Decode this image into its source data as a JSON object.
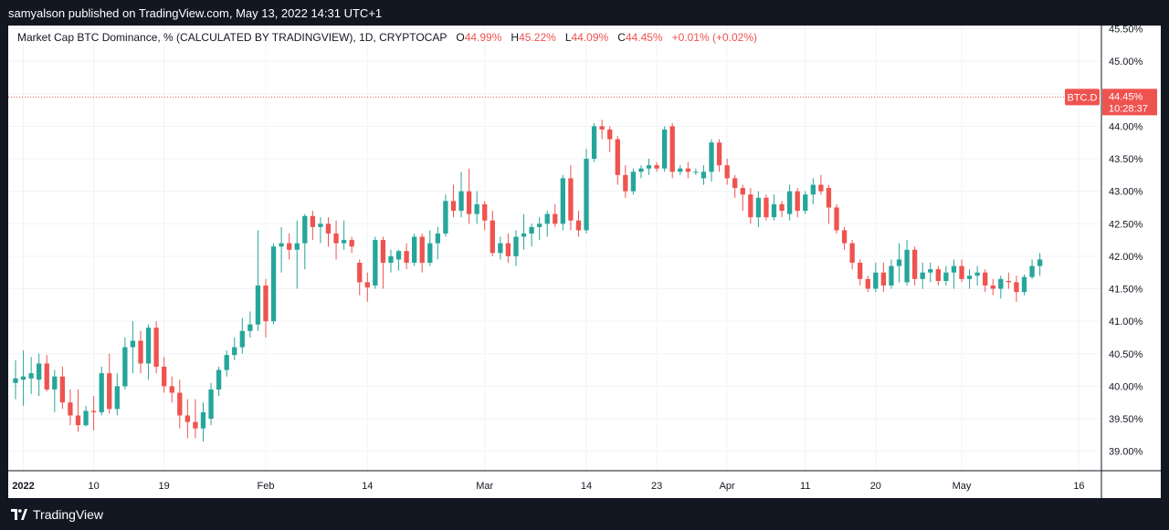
{
  "header": {
    "published": "samyalson published on TradingView.com, May 13, 2022 14:31 UTC+1"
  },
  "legend": {
    "title": "Market Cap BTC Dominance, % (CALCULATED BY TRADINGVIEW), 1D, CRYPTOCAP",
    "o_label": "O",
    "o_value": "44.99%",
    "h_label": "H",
    "h_value": "45.22%",
    "l_label": "L",
    "l_value": "44.09%",
    "c_label": "C",
    "c_value": "44.45%",
    "change": "+0.01% (+0.02%)"
  },
  "price_tag": {
    "symbol": "BTC.D",
    "price": "44.45%",
    "countdown": "10:28:37"
  },
  "footer": {
    "brand": "TradingView"
  },
  "colors": {
    "up": "#26a69a",
    "down": "#ef5350",
    "grid": "#f0f3fa",
    "axis_text": "#131722",
    "background": "#ffffff",
    "frame": "#131722"
  },
  "chart_data": {
    "type": "candlestick",
    "title": "Market Cap BTC Dominance, % (CALCULATED BY TRADINGVIEW), 1D, CRYPTOCAP",
    "xlabel": "",
    "ylabel": "",
    "y_unit": "%",
    "ylim": [
      38.7,
      45.55
    ],
    "y_ticks": [
      39.0,
      39.5,
      40.0,
      40.5,
      41.0,
      41.5,
      42.0,
      42.5,
      43.0,
      43.5,
      44.0,
      44.5,
      45.0,
      45.5
    ],
    "y_tick_labels": [
      "39.00%",
      "39.50%",
      "40.00%",
      "40.50%",
      "41.00%",
      "41.50%",
      "42.00%",
      "42.50%",
      "43.00%",
      "43.50%",
      "44.00%",
      "44.50%",
      "45.00%",
      "45.50%"
    ],
    "x_ticks": [
      {
        "label": "2022",
        "date": "2022-01-01"
      },
      {
        "label": "10",
        "date": "2022-01-10"
      },
      {
        "label": "19",
        "date": "2022-01-19"
      },
      {
        "label": "Feb",
        "date": "2022-02-01"
      },
      {
        "label": "14",
        "date": "2022-02-14"
      },
      {
        "label": "Mar",
        "date": "2022-03-01"
      },
      {
        "label": "14",
        "date": "2022-03-14"
      },
      {
        "label": "23",
        "date": "2022-03-23"
      },
      {
        "label": "Apr",
        "date": "2022-04-01"
      },
      {
        "label": "11",
        "date": "2022-04-11"
      },
      {
        "label": "20",
        "date": "2022-04-20"
      },
      {
        "label": "May",
        "date": "2022-05-01"
      },
      {
        "label": "16",
        "date": "2022-05-16"
      }
    ],
    "x_range": [
      "2021-12-31",
      "2022-05-17"
    ],
    "last_price": 44.45,
    "grid": true,
    "legend_placement": "top-left",
    "candles": [
      {
        "date": "2021-12-31",
        "o": 40.05,
        "h": 40.4,
        "l": 39.8,
        "c": 40.12
      },
      {
        "date": "2022-01-01",
        "o": 40.1,
        "h": 40.55,
        "l": 39.7,
        "c": 40.15
      },
      {
        "date": "2022-01-02",
        "o": 40.12,
        "h": 40.45,
        "l": 39.88,
        "c": 40.2
      },
      {
        "date": "2022-01-03",
        "o": 40.1,
        "h": 40.5,
        "l": 39.85,
        "c": 40.35
      },
      {
        "date": "2022-01-04",
        "o": 40.35,
        "h": 40.48,
        "l": 39.92,
        "c": 39.95
      },
      {
        "date": "2022-01-05",
        "o": 39.95,
        "h": 40.25,
        "l": 39.6,
        "c": 40.15
      },
      {
        "date": "2022-01-06",
        "o": 40.15,
        "h": 40.3,
        "l": 39.65,
        "c": 39.75
      },
      {
        "date": "2022-01-07",
        "o": 39.75,
        "h": 39.95,
        "l": 39.4,
        "c": 39.55
      },
      {
        "date": "2022-01-08",
        "o": 39.55,
        "h": 39.95,
        "l": 39.3,
        "c": 39.4
      },
      {
        "date": "2022-01-09",
        "o": 39.4,
        "h": 39.7,
        "l": 39.38,
        "c": 39.62
      },
      {
        "date": "2022-01-10",
        "o": 39.62,
        "h": 39.85,
        "l": 39.32,
        "c": 39.6
      },
      {
        "date": "2022-01-11",
        "o": 39.6,
        "h": 40.3,
        "l": 39.55,
        "c": 40.2
      },
      {
        "date": "2022-01-12",
        "o": 40.2,
        "h": 40.5,
        "l": 39.58,
        "c": 39.65
      },
      {
        "date": "2022-01-13",
        "o": 39.65,
        "h": 40.2,
        "l": 39.55,
        "c": 40.0
      },
      {
        "date": "2022-01-14",
        "o": 40.0,
        "h": 40.75,
        "l": 39.95,
        "c": 40.6
      },
      {
        "date": "2022-01-15",
        "o": 40.6,
        "h": 41.0,
        "l": 40.2,
        "c": 40.7
      },
      {
        "date": "2022-01-16",
        "o": 40.7,
        "h": 40.85,
        "l": 40.2,
        "c": 40.35
      },
      {
        "date": "2022-01-17",
        "o": 40.35,
        "h": 40.95,
        "l": 40.1,
        "c": 40.9
      },
      {
        "date": "2022-01-18",
        "o": 40.9,
        "h": 41.0,
        "l": 40.2,
        "c": 40.3
      },
      {
        "date": "2022-01-19",
        "o": 40.3,
        "h": 40.45,
        "l": 39.9,
        "c": 40.0
      },
      {
        "date": "2022-01-20",
        "o": 40.0,
        "h": 40.15,
        "l": 39.75,
        "c": 39.9
      },
      {
        "date": "2022-01-21",
        "o": 39.9,
        "h": 40.1,
        "l": 39.35,
        "c": 39.55
      },
      {
        "date": "2022-01-22",
        "o": 39.55,
        "h": 39.8,
        "l": 39.2,
        "c": 39.45
      },
      {
        "date": "2022-01-23",
        "o": 39.45,
        "h": 39.8,
        "l": 39.2,
        "c": 39.35
      },
      {
        "date": "2022-01-24",
        "o": 39.35,
        "h": 39.75,
        "l": 39.15,
        "c": 39.6
      },
      {
        "date": "2022-01-25",
        "o": 39.5,
        "h": 40.05,
        "l": 39.4,
        "c": 39.95
      },
      {
        "date": "2022-01-26",
        "o": 39.95,
        "h": 40.3,
        "l": 39.85,
        "c": 40.25
      },
      {
        "date": "2022-01-27",
        "o": 40.25,
        "h": 40.55,
        "l": 40.15,
        "c": 40.48
      },
      {
        "date": "2022-01-28",
        "o": 40.48,
        "h": 40.75,
        "l": 40.4,
        "c": 40.6
      },
      {
        "date": "2022-01-29",
        "o": 40.6,
        "h": 41.05,
        "l": 40.5,
        "c": 40.85
      },
      {
        "date": "2022-01-30",
        "o": 40.85,
        "h": 41.15,
        "l": 40.75,
        "c": 40.95
      },
      {
        "date": "2022-01-31",
        "o": 40.95,
        "h": 42.4,
        "l": 40.85,
        "c": 41.55
      },
      {
        "date": "2022-02-01",
        "o": 41.55,
        "h": 41.65,
        "l": 40.75,
        "c": 41.0
      },
      {
        "date": "2022-02-02",
        "o": 41.0,
        "h": 42.2,
        "l": 40.95,
        "c": 42.15
      },
      {
        "date": "2022-02-03",
        "o": 42.15,
        "h": 42.45,
        "l": 41.75,
        "c": 42.2
      },
      {
        "date": "2022-02-04",
        "o": 42.2,
        "h": 42.35,
        "l": 41.95,
        "c": 42.1
      },
      {
        "date": "2022-02-05",
        "o": 42.1,
        "h": 42.55,
        "l": 41.5,
        "c": 42.2
      },
      {
        "date": "2022-02-06",
        "o": 42.2,
        "h": 42.65,
        "l": 41.8,
        "c": 42.62
      },
      {
        "date": "2022-02-07",
        "o": 42.62,
        "h": 42.7,
        "l": 42.25,
        "c": 42.45
      },
      {
        "date": "2022-02-08",
        "o": 42.45,
        "h": 42.6,
        "l": 42.2,
        "c": 42.5
      },
      {
        "date": "2022-02-09",
        "o": 42.5,
        "h": 42.6,
        "l": 42.15,
        "c": 42.35
      },
      {
        "date": "2022-02-10",
        "o": 42.35,
        "h": 42.55,
        "l": 41.95,
        "c": 42.2
      },
      {
        "date": "2022-02-11",
        "o": 42.2,
        "h": 42.55,
        "l": 42.1,
        "c": 42.25
      },
      {
        "date": "2022-02-12",
        "o": 42.25,
        "h": 42.3,
        "l": 42.05,
        "c": 42.15
      },
      {
        "date": "2022-02-13",
        "o": 41.9,
        "h": 41.95,
        "l": 41.4,
        "c": 41.6
      },
      {
        "date": "2022-02-14",
        "o": 41.6,
        "h": 41.75,
        "l": 41.3,
        "c": 41.52
      },
      {
        "date": "2022-02-15",
        "o": 41.55,
        "h": 42.3,
        "l": 41.5,
        "c": 42.25
      },
      {
        "date": "2022-02-16",
        "o": 42.25,
        "h": 42.3,
        "l": 41.5,
        "c": 41.9
      },
      {
        "date": "2022-02-17",
        "o": 41.9,
        "h": 42.1,
        "l": 41.75,
        "c": 42.0
      },
      {
        "date": "2022-02-18",
        "o": 41.95,
        "h": 42.1,
        "l": 41.78,
        "c": 42.08
      },
      {
        "date": "2022-02-19",
        "o": 42.08,
        "h": 42.2,
        "l": 41.8,
        "c": 41.9
      },
      {
        "date": "2022-02-20",
        "o": 41.9,
        "h": 42.35,
        "l": 41.85,
        "c": 42.3
      },
      {
        "date": "2022-02-21",
        "o": 42.3,
        "h": 42.35,
        "l": 41.75,
        "c": 41.9
      },
      {
        "date": "2022-02-22",
        "o": 41.9,
        "h": 42.4,
        "l": 41.85,
        "c": 42.2
      },
      {
        "date": "2022-02-23",
        "o": 42.2,
        "h": 42.45,
        "l": 41.95,
        "c": 42.35
      },
      {
        "date": "2022-02-24",
        "o": 42.35,
        "h": 42.95,
        "l": 42.3,
        "c": 42.85
      },
      {
        "date": "2022-02-25",
        "o": 42.85,
        "h": 43.1,
        "l": 42.6,
        "c": 42.7
      },
      {
        "date": "2022-02-26",
        "o": 42.7,
        "h": 43.3,
        "l": 42.6,
        "c": 43.0
      },
      {
        "date": "2022-02-27",
        "o": 43.0,
        "h": 43.35,
        "l": 42.5,
        "c": 42.65
      },
      {
        "date": "2022-02-28",
        "o": 42.65,
        "h": 43.0,
        "l": 42.5,
        "c": 42.8
      },
      {
        "date": "2022-03-01",
        "o": 42.8,
        "h": 42.85,
        "l": 42.4,
        "c": 42.55
      },
      {
        "date": "2022-03-02",
        "o": 42.55,
        "h": 42.7,
        "l": 42.0,
        "c": 42.05
      },
      {
        "date": "2022-03-03",
        "o": 42.05,
        "h": 42.3,
        "l": 41.95,
        "c": 42.2
      },
      {
        "date": "2022-03-04",
        "o": 42.2,
        "h": 42.35,
        "l": 41.9,
        "c": 42.0
      },
      {
        "date": "2022-03-05",
        "o": 42.0,
        "h": 42.4,
        "l": 41.85,
        "c": 42.3
      },
      {
        "date": "2022-03-06",
        "o": 42.3,
        "h": 42.65,
        "l": 42.1,
        "c": 42.35
      },
      {
        "date": "2022-03-07",
        "o": 42.35,
        "h": 42.5,
        "l": 42.15,
        "c": 42.45
      },
      {
        "date": "2022-03-08",
        "o": 42.45,
        "h": 42.6,
        "l": 42.25,
        "c": 42.5
      },
      {
        "date": "2022-03-09",
        "o": 42.5,
        "h": 42.7,
        "l": 42.3,
        "c": 42.65
      },
      {
        "date": "2022-03-10",
        "o": 42.65,
        "h": 42.8,
        "l": 42.45,
        "c": 42.5
      },
      {
        "date": "2022-03-11",
        "o": 42.5,
        "h": 43.25,
        "l": 42.4,
        "c": 43.2
      },
      {
        "date": "2022-03-12",
        "o": 43.2,
        "h": 43.4,
        "l": 42.4,
        "c": 42.55
      },
      {
        "date": "2022-03-13",
        "o": 42.55,
        "h": 42.7,
        "l": 42.3,
        "c": 42.4
      },
      {
        "date": "2022-03-14",
        "o": 42.4,
        "h": 43.65,
        "l": 42.35,
        "c": 43.5
      },
      {
        "date": "2022-03-15",
        "o": 43.5,
        "h": 44.05,
        "l": 43.45,
        "c": 44.0
      },
      {
        "date": "2022-03-16",
        "o": 44.0,
        "h": 44.1,
        "l": 43.8,
        "c": 43.95
      },
      {
        "date": "2022-03-17",
        "o": 43.95,
        "h": 44.0,
        "l": 43.6,
        "c": 43.8
      },
      {
        "date": "2022-03-18",
        "o": 43.8,
        "h": 43.85,
        "l": 43.1,
        "c": 43.25
      },
      {
        "date": "2022-03-19",
        "o": 43.25,
        "h": 43.4,
        "l": 42.9,
        "c": 43.0
      },
      {
        "date": "2022-03-20",
        "o": 43.0,
        "h": 43.35,
        "l": 42.95,
        "c": 43.3
      },
      {
        "date": "2022-03-21",
        "o": 43.3,
        "h": 43.4,
        "l": 43.2,
        "c": 43.35
      },
      {
        "date": "2022-03-22",
        "o": 43.35,
        "h": 43.5,
        "l": 43.25,
        "c": 43.4
      },
      {
        "date": "2022-03-23",
        "o": 43.4,
        "h": 43.45,
        "l": 43.3,
        "c": 43.35
      },
      {
        "date": "2022-03-24",
        "o": 43.35,
        "h": 44.0,
        "l": 43.3,
        "c": 43.95
      },
      {
        "date": "2022-03-25",
        "o": 44.0,
        "h": 44.05,
        "l": 43.2,
        "c": 43.3
      },
      {
        "date": "2022-03-26",
        "o": 43.3,
        "h": 43.4,
        "l": 43.25,
        "c": 43.35
      },
      {
        "date": "2022-03-27",
        "o": 43.35,
        "h": 43.45,
        "l": 43.2,
        "c": 43.3
      },
      {
        "date": "2022-03-28",
        "o": 43.3,
        "h": 43.35,
        "l": 43.25,
        "c": 43.3
      },
      {
        "date": "2022-03-29",
        "o": 43.2,
        "h": 43.4,
        "l": 43.1,
        "c": 43.3
      },
      {
        "date": "2022-03-30",
        "o": 43.3,
        "h": 43.8,
        "l": 43.15,
        "c": 43.75
      },
      {
        "date": "2022-03-31",
        "o": 43.75,
        "h": 43.8,
        "l": 43.3,
        "c": 43.4
      },
      {
        "date": "2022-04-01",
        "o": 43.4,
        "h": 43.5,
        "l": 43.1,
        "c": 43.2
      },
      {
        "date": "2022-04-02",
        "o": 43.2,
        "h": 43.25,
        "l": 42.9,
        "c": 43.05
      },
      {
        "date": "2022-04-03",
        "o": 43.05,
        "h": 43.1,
        "l": 42.7,
        "c": 42.95
      },
      {
        "date": "2022-04-04",
        "o": 42.95,
        "h": 43.05,
        "l": 42.5,
        "c": 42.6
      },
      {
        "date": "2022-04-05",
        "o": 42.6,
        "h": 43.0,
        "l": 42.45,
        "c": 42.9
      },
      {
        "date": "2022-04-06",
        "o": 42.9,
        "h": 42.95,
        "l": 42.55,
        "c": 42.6
      },
      {
        "date": "2022-04-07",
        "o": 42.6,
        "h": 42.95,
        "l": 42.55,
        "c": 42.8
      },
      {
        "date": "2022-04-08",
        "o": 42.8,
        "h": 42.85,
        "l": 42.6,
        "c": 42.7
      },
      {
        "date": "2022-04-09",
        "o": 42.65,
        "h": 43.1,
        "l": 42.55,
        "c": 43.0
      },
      {
        "date": "2022-04-10",
        "o": 43.0,
        "h": 43.05,
        "l": 42.6,
        "c": 42.7
      },
      {
        "date": "2022-04-11",
        "o": 42.7,
        "h": 43.0,
        "l": 42.65,
        "c": 42.95
      },
      {
        "date": "2022-04-12",
        "o": 42.95,
        "h": 43.2,
        "l": 42.8,
        "c": 43.1
      },
      {
        "date": "2022-04-13",
        "o": 43.1,
        "h": 43.25,
        "l": 42.95,
        "c": 43.0
      },
      {
        "date": "2022-04-14",
        "o": 43.05,
        "h": 43.1,
        "l": 42.5,
        "c": 42.75
      },
      {
        "date": "2022-04-15",
        "o": 42.75,
        "h": 42.8,
        "l": 42.35,
        "c": 42.4
      },
      {
        "date": "2022-04-16",
        "o": 42.4,
        "h": 42.45,
        "l": 42.1,
        "c": 42.2
      },
      {
        "date": "2022-04-17",
        "o": 42.2,
        "h": 42.25,
        "l": 41.8,
        "c": 41.9
      },
      {
        "date": "2022-04-18",
        "o": 41.9,
        "h": 41.95,
        "l": 41.55,
        "c": 41.65
      },
      {
        "date": "2022-04-19",
        "o": 41.65,
        "h": 41.7,
        "l": 41.45,
        "c": 41.5
      },
      {
        "date": "2022-04-20",
        "o": 41.5,
        "h": 41.9,
        "l": 41.45,
        "c": 41.75
      },
      {
        "date": "2022-04-21",
        "o": 41.75,
        "h": 41.9,
        "l": 41.45,
        "c": 41.55
      },
      {
        "date": "2022-04-22",
        "o": 41.55,
        "h": 41.95,
        "l": 41.5,
        "c": 41.85
      },
      {
        "date": "2022-04-23",
        "o": 41.85,
        "h": 42.2,
        "l": 41.6,
        "c": 41.95
      },
      {
        "date": "2022-04-24",
        "o": 41.6,
        "h": 42.25,
        "l": 41.55,
        "c": 42.1
      },
      {
        "date": "2022-04-25",
        "o": 42.1,
        "h": 42.15,
        "l": 41.55,
        "c": 41.65
      },
      {
        "date": "2022-04-26",
        "o": 41.65,
        "h": 41.9,
        "l": 41.5,
        "c": 41.75
      },
      {
        "date": "2022-04-27",
        "o": 41.75,
        "h": 41.9,
        "l": 41.6,
        "c": 41.8
      },
      {
        "date": "2022-04-28",
        "o": 41.8,
        "h": 41.85,
        "l": 41.55,
        "c": 41.62
      },
      {
        "date": "2022-04-29",
        "o": 41.62,
        "h": 41.85,
        "l": 41.55,
        "c": 41.75
      },
      {
        "date": "2022-04-30",
        "o": 41.75,
        "h": 41.95,
        "l": 41.5,
        "c": 41.85
      },
      {
        "date": "2022-05-01",
        "o": 41.85,
        "h": 41.95,
        "l": 41.6,
        "c": 41.65
      },
      {
        "date": "2022-05-02",
        "o": 41.65,
        "h": 41.8,
        "l": 41.5,
        "c": 41.7
      },
      {
        "date": "2022-05-03",
        "o": 41.7,
        "h": 41.85,
        "l": 41.55,
        "c": 41.75
      },
      {
        "date": "2022-05-04",
        "o": 41.75,
        "h": 41.8,
        "l": 41.45,
        "c": 41.55
      },
      {
        "date": "2022-05-05",
        "o": 41.55,
        "h": 41.65,
        "l": 41.4,
        "c": 41.5
      },
      {
        "date": "2022-05-06",
        "o": 41.5,
        "h": 41.7,
        "l": 41.35,
        "c": 41.65
      },
      {
        "date": "2022-05-07",
        "o": 41.62,
        "h": 41.75,
        "l": 41.5,
        "c": 41.6
      },
      {
        "date": "2022-05-08",
        "o": 41.6,
        "h": 41.7,
        "l": 41.3,
        "c": 41.45
      },
      {
        "date": "2022-05-09",
        "o": 41.45,
        "h": 41.72,
        "l": 41.4,
        "c": 41.68
      },
      {
        "date": "2022-05-10",
        "o": 41.68,
        "h": 41.95,
        "l": 41.65,
        "c": 41.85
      },
      {
        "date": "2022-05-11",
        "o": 41.85,
        "h": 42.05,
        "l": 41.7,
        "c": 41.95
      }
    ]
  }
}
